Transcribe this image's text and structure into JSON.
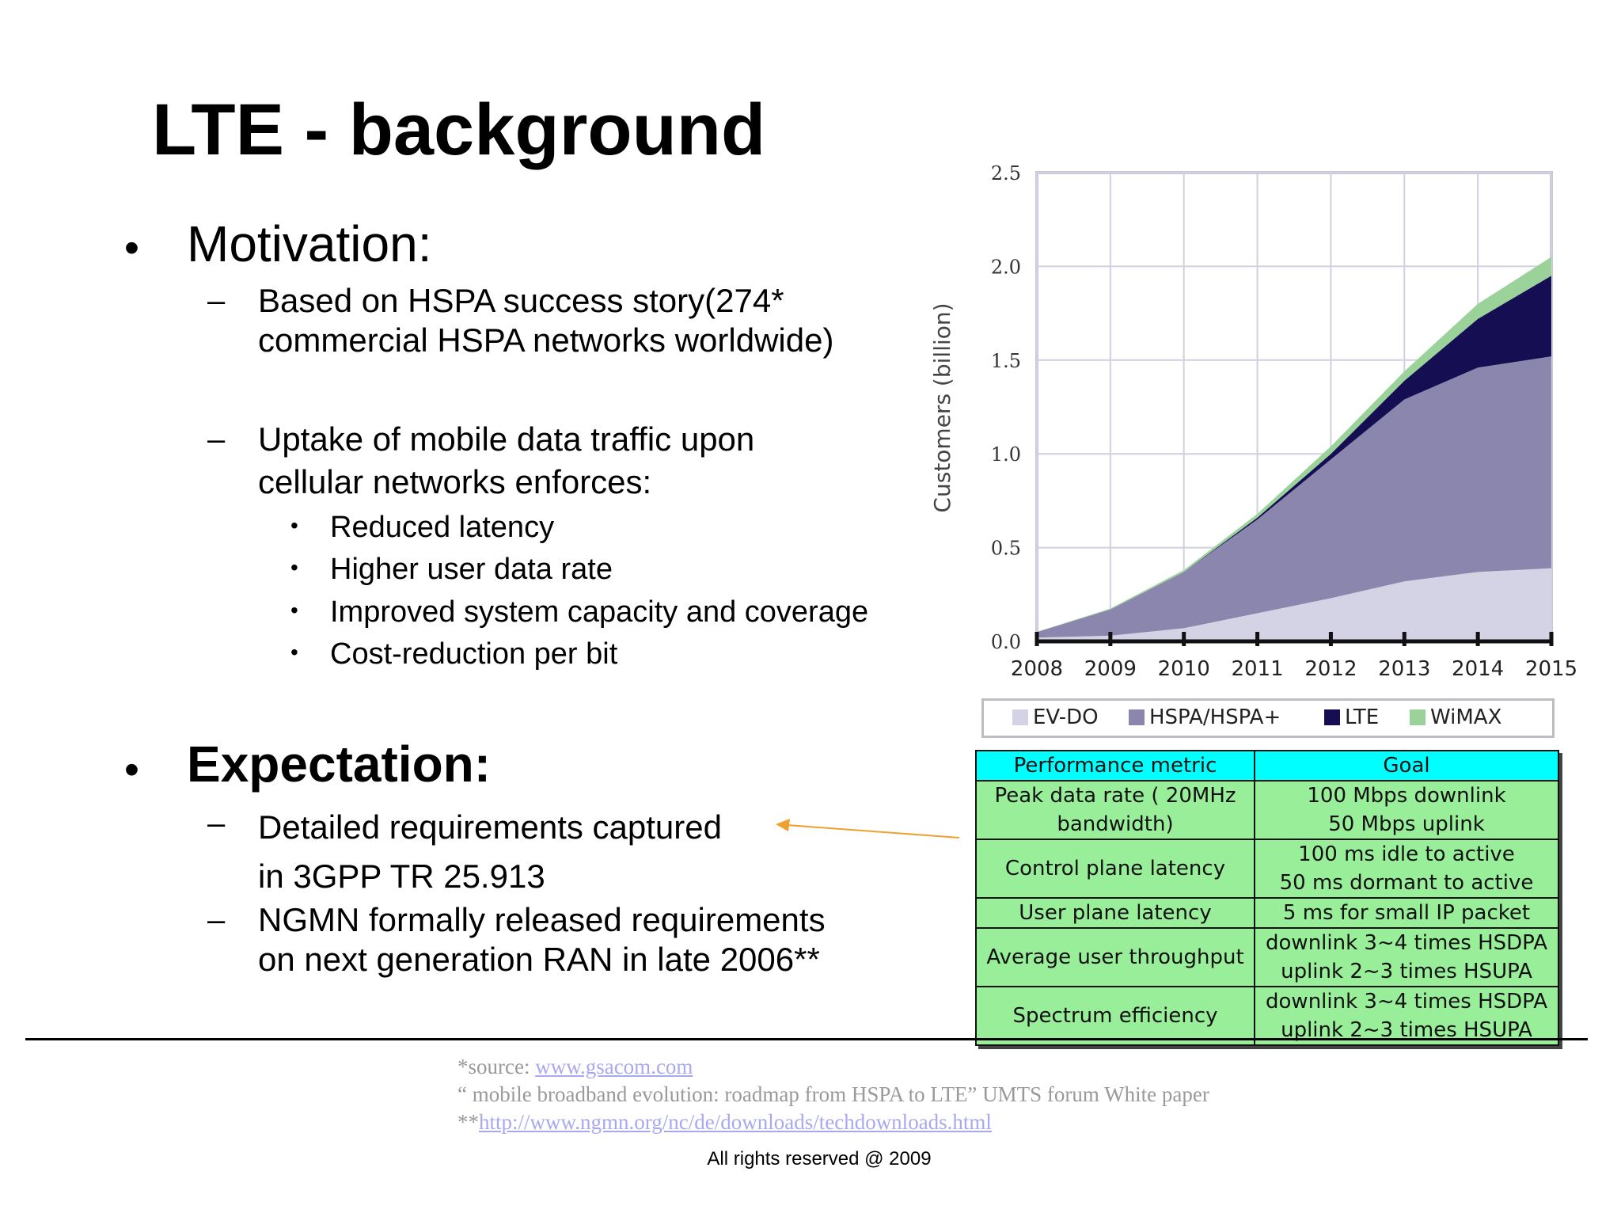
{
  "title": "LTE - background",
  "bullets": {
    "bullet_char": "•",
    "dash_char": "–",
    "motivation": {
      "heading": "Motivation:",
      "sub1": [
        "Based on HSPA success story(274*",
        "commercial HSPA networks worldwide)"
      ],
      "sub2": [
        "Uptake of mobile data traffic upon",
        "cellular networks enforces:"
      ],
      "items": [
        "Reduced latency",
        "Higher user data rate",
        "Improved system capacity and coverage",
        "Cost-reduction per bit"
      ]
    },
    "expectation": {
      "heading": "Expectation:",
      "sub1": [
        "Detailed requirements captured",
        "in 3GPP TR 25.913"
      ],
      "sub2": [
        "NGMN formally released requirements",
        "on next generation RAN in late 2006**"
      ]
    }
  },
  "footnotes": {
    "source_prefix": "*source: ",
    "source_link": "www.gsacom.com",
    "paper": "“ mobile broadband evolution: roadmap  from HSPA to LTE”  UMTS forum White paper",
    "ngmn_prefix": "**",
    "ngmn_link": "http://www.ngmn.org/nc/de/downloads/techdownloads.html"
  },
  "copyright": "All rights reserved @ 2009",
  "chart_data": {
    "type": "area",
    "stacked": true,
    "ylabel": "Customers (billion)",
    "xlabel": "",
    "x": [
      2008,
      2009,
      2010,
      2011,
      2012,
      2013,
      2014,
      2015
    ],
    "ylim": [
      0,
      2.5
    ],
    "yticks": [
      "0.0",
      "0.5",
      "1.0",
      "1.5",
      "2.0",
      "2.5"
    ],
    "grid": true,
    "legend_position": "bottom",
    "series": [
      {
        "name": "EV-DO",
        "color": "#d4d3e6",
        "values": [
          0.02,
          0.03,
          0.07,
          0.15,
          0.23,
          0.32,
          0.37,
          0.39
        ]
      },
      {
        "name": "HSPA/HSPA+",
        "color": "#8a86ad",
        "values": [
          0.03,
          0.14,
          0.3,
          0.5,
          0.74,
          0.97,
          1.09,
          1.13
        ]
      },
      {
        "name": "LTE",
        "color": "#150e52",
        "values": [
          0,
          0,
          0,
          0.01,
          0.03,
          0.1,
          0.26,
          0.43
        ]
      },
      {
        "name": "WiMAX",
        "color": "#9ad29a",
        "values": [
          0,
          0.005,
          0.01,
          0.02,
          0.04,
          0.05,
          0.08,
          0.1
        ]
      }
    ]
  },
  "table": {
    "headers": [
      "Performance metric",
      "Goal"
    ],
    "rows": [
      {
        "metric": [
          "Peak data rate ( 20MHz",
          "bandwidth)"
        ],
        "goal": [
          "100 Mbps downlink",
          "50 Mbps uplink"
        ]
      },
      {
        "metric": [
          "Control plane latency"
        ],
        "goal": [
          "100 ms idle to active",
          "50 ms dormant to active"
        ]
      },
      {
        "metric": [
          "User plane latency"
        ],
        "goal": [
          "5 ms for small IP packet"
        ]
      },
      {
        "metric": [
          "Average user throughput"
        ],
        "goal": [
          "downlink 3~4 times HSDPA",
          "uplink 2~3 times HSUPA"
        ]
      },
      {
        "metric": [
          "Spectrum efficiency"
        ],
        "goal": [
          "downlink 3~4 times HSDPA",
          "uplink 2~3 times HSUPA"
        ]
      }
    ]
  },
  "colors": {
    "arrow": "#f0a030",
    "header_cell": "#00ffff",
    "body_cell": "#99ee99"
  }
}
